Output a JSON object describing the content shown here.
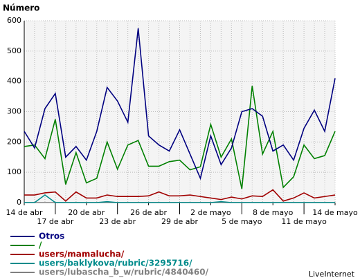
{
  "chart_data": {
    "type": "line",
    "title": "Número",
    "categories": [
      "14 de abr",
      null,
      null,
      "17 de abr",
      null,
      null,
      "20 de abr",
      null,
      null,
      "23 de abr",
      null,
      null,
      "26 de abr",
      null,
      null,
      "29 de abr",
      null,
      null,
      "2 de mayo",
      null,
      null,
      "5 de mayo",
      null,
      null,
      "8 de mayo",
      null,
      null,
      "11 de mayo",
      null,
      null,
      "14 de mayo"
    ],
    "ylim": [
      0,
      600
    ],
    "yticks": [
      0,
      100,
      200,
      300,
      400,
      500,
      600
    ],
    "grid": true,
    "series": [
      {
        "name": "Otros",
        "color": "#000080",
        "values": [
          235,
          180,
          310,
          360,
          150,
          185,
          140,
          235,
          380,
          335,
          265,
          575,
          220,
          190,
          170,
          240,
          160,
          80,
          220,
          125,
          180,
          300,
          310,
          285,
          170,
          190,
          140,
          245,
          305,
          235,
          410
        ]
      },
      {
        "name": "/",
        "color": "#008000",
        "values": [
          185,
          190,
          145,
          275,
          60,
          165,
          65,
          80,
          200,
          110,
          190,
          205,
          120,
          120,
          135,
          140,
          108,
          118,
          258,
          150,
          210,
          45,
          385,
          160,
          235,
          50,
          85,
          190,
          145,
          155,
          235
        ]
      },
      {
        "name": "users/mamalucha/",
        "color": "#a00000",
        "values": [
          25,
          25,
          32,
          35,
          5,
          35,
          15,
          15,
          25,
          20,
          20,
          20,
          22,
          35,
          22,
          22,
          25,
          20,
          15,
          10,
          18,
          12,
          22,
          20,
          42,
          5,
          15,
          32,
          15,
          20,
          25
        ]
      },
      {
        "name": "users/baklykova/rubric/3295716/",
        "color": "#008b8b",
        "values": [
          0,
          0,
          25,
          0,
          0,
          0,
          0,
          0,
          3,
          0,
          0,
          0,
          0,
          0,
          0,
          0,
          0,
          0,
          0,
          3,
          0,
          0,
          0,
          0,
          0,
          0,
          0,
          0,
          0,
          0,
          0
        ]
      },
      {
        "name": "users/lubascha_b_w/rubric/4840460/",
        "color": "#808080",
        "values": [
          0,
          0,
          0,
          0,
          0,
          0,
          0,
          0,
          0,
          0,
          0,
          0,
          0,
          0,
          0,
          0,
          0,
          0,
          0,
          0,
          0,
          0,
          0,
          0,
          0,
          0,
          0,
          0,
          0,
          0,
          0
        ]
      }
    ],
    "watermark": "LiveInternet"
  }
}
